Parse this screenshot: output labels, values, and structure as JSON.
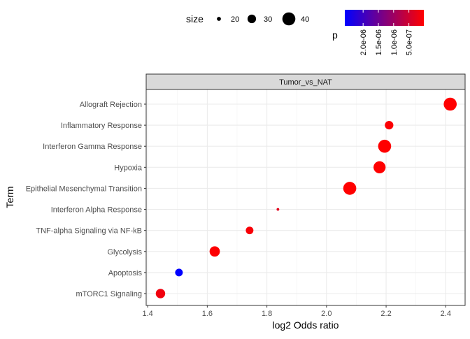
{
  "chart_data": {
    "type": "scatter",
    "facet_label": "Tumor_vs_NAT",
    "xlabel": "log2 Odds ratio",
    "ylabel": "Term",
    "xlim": [
      1.395,
      2.465
    ],
    "x_ticks": [
      1.4,
      1.6,
      1.8,
      2.0,
      2.2,
      2.4
    ],
    "x_tick_labels": [
      "1.4",
      "1.6",
      "1.8",
      "2.0",
      "2.2",
      "2.4"
    ],
    "grid": true,
    "categories": [
      "mTORC1 Signaling",
      "Apoptosis",
      "Glycolysis",
      "TNF-alpha Signaling via NF-kB",
      "Interferon Alpha Response",
      "Epithelial Mesenchymal Transition",
      "Hypoxia",
      "Interferon Gamma Response",
      "Inflammatory Response",
      "Allograft Rejection"
    ],
    "points": [
      {
        "term": "Allograft Rejection",
        "x": 2.415,
        "size": 40,
        "p": 1e-08
      },
      {
        "term": "Inflammatory Response",
        "x": 2.21,
        "size": 30,
        "p": 5e-08
      },
      {
        "term": "Interferon Gamma Response",
        "x": 2.195,
        "size": 40,
        "p": 1e-08
      },
      {
        "term": "Hypoxia",
        "x": 2.178,
        "size": 38,
        "p": 1e-08
      },
      {
        "term": "Epithelial Mesenchymal Transition",
        "x": 2.078,
        "size": 40,
        "p": 1e-08
      },
      {
        "term": "Interferon Alpha Response",
        "x": 1.837,
        "size": 17,
        "p": 3e-07
      },
      {
        "term": "TNF-alpha Signaling via NF-kB",
        "x": 1.742,
        "size": 28,
        "p": 8e-08
      },
      {
        "term": "Glycolysis",
        "x": 1.625,
        "size": 34,
        "p": 3e-08
      },
      {
        "term": "Apoptosis",
        "x": 1.505,
        "size": 28,
        "p": 2.6e-06
      },
      {
        "term": "mTORC1 Signaling",
        "x": 1.443,
        "size": 32,
        "p": 1.5e-07
      }
    ],
    "size_legend": {
      "title": "size",
      "values": [
        20,
        30,
        40
      ],
      "labels": [
        "20",
        "30",
        "40"
      ]
    },
    "color_legend": {
      "title": "p",
      "low_color": "#ff0000",
      "high_color": "#0000ff",
      "range": [
        1e-08,
        2.6e-06
      ],
      "ticks": [
        5e-07,
        1e-06,
        1.5e-06,
        2e-06
      ],
      "tick_labels": [
        "5.0e-07",
        "1.0e-06",
        "1.5e-06",
        "2.0e-06"
      ],
      "position": "top"
    }
  }
}
